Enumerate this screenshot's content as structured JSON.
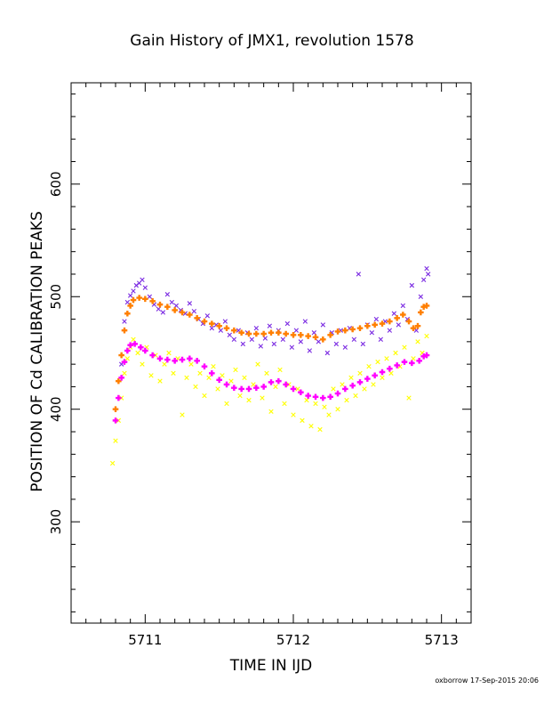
{
  "chart_data": {
    "type": "scatter",
    "title": "Gain History of JMX1, revolution 1578",
    "xlabel": "TIME IN IJD",
    "ylabel": "POSITION OF Cd CALIBRATION PEAKS",
    "xlim": [
      5710.5,
      5713.2
    ],
    "ylim": [
      210,
      690
    ],
    "xticks": [
      5711,
      5712,
      5713
    ],
    "yticks": [
      300,
      400,
      500,
      600
    ],
    "grid": false,
    "series": [
      {
        "color": "#7b2be2",
        "marker": "x",
        "points": [
          [
            5710.84,
            440
          ],
          [
            5710.86,
            478
          ],
          [
            5710.88,
            495
          ],
          [
            5710.9,
            501
          ],
          [
            5710.92,
            505
          ],
          [
            5710.94,
            510
          ],
          [
            5710.96,
            512
          ],
          [
            5710.98,
            515
          ],
          [
            5711.0,
            508
          ],
          [
            5711.03,
            500
          ],
          [
            5711.06,
            493
          ],
          [
            5711.09,
            489
          ],
          [
            5711.12,
            486
          ],
          [
            5711.15,
            502
          ],
          [
            5711.18,
            495
          ],
          [
            5711.21,
            492
          ],
          [
            5711.24,
            488
          ],
          [
            5711.27,
            485
          ],
          [
            5711.3,
            494
          ],
          [
            5711.33,
            487
          ],
          [
            5711.36,
            480
          ],
          [
            5711.39,
            476
          ],
          [
            5711.42,
            483
          ],
          [
            5711.45,
            472
          ],
          [
            5711.48,
            475
          ],
          [
            5711.51,
            470
          ],
          [
            5711.54,
            478
          ],
          [
            5711.57,
            466
          ],
          [
            5711.6,
            462
          ],
          [
            5711.63,
            470
          ],
          [
            5711.66,
            458
          ],
          [
            5711.69,
            468
          ],
          [
            5711.72,
            462
          ],
          [
            5711.75,
            472
          ],
          [
            5711.78,
            456
          ],
          [
            5711.81,
            463
          ],
          [
            5711.84,
            474
          ],
          [
            5711.87,
            458
          ],
          [
            5711.9,
            470
          ],
          [
            5711.93,
            462
          ],
          [
            5711.96,
            476
          ],
          [
            5711.99,
            455
          ],
          [
            5712.02,
            470
          ],
          [
            5712.05,
            460
          ],
          [
            5712.08,
            478
          ],
          [
            5712.11,
            452
          ],
          [
            5712.14,
            468
          ],
          [
            5712.17,
            460
          ],
          [
            5712.2,
            475
          ],
          [
            5712.23,
            450
          ],
          [
            5712.26,
            468
          ],
          [
            5712.29,
            458
          ],
          [
            5712.32,
            470
          ],
          [
            5712.35,
            455
          ],
          [
            5712.38,
            472
          ],
          [
            5712.41,
            462
          ],
          [
            5712.44,
            520
          ],
          [
            5712.47,
            458
          ],
          [
            5712.5,
            475
          ],
          [
            5712.53,
            468
          ],
          [
            5712.56,
            480
          ],
          [
            5712.59,
            462
          ],
          [
            5712.62,
            478
          ],
          [
            5712.65,
            470
          ],
          [
            5712.68,
            485
          ],
          [
            5712.71,
            475
          ],
          [
            5712.74,
            492
          ],
          [
            5712.77,
            480
          ],
          [
            5712.8,
            510
          ],
          [
            5712.83,
            470
          ],
          [
            5712.86,
            500
          ],
          [
            5712.88,
            515
          ],
          [
            5712.9,
            525
          ],
          [
            5712.91,
            520
          ]
        ]
      },
      {
        "color": "#ffff00",
        "marker": "x",
        "points": [
          [
            5710.78,
            352
          ],
          [
            5710.8,
            372
          ],
          [
            5710.82,
            390
          ],
          [
            5710.84,
            410
          ],
          [
            5710.86,
            432
          ],
          [
            5710.88,
            445
          ],
          [
            5710.9,
            455
          ],
          [
            5710.92,
            462
          ],
          [
            5710.95,
            450
          ],
          [
            5710.98,
            440
          ],
          [
            5711.01,
            455
          ],
          [
            5711.04,
            430
          ],
          [
            5711.07,
            448
          ],
          [
            5711.1,
            425
          ],
          [
            5711.13,
            440
          ],
          [
            5711.16,
            450
          ],
          [
            5711.19,
            432
          ],
          [
            5711.22,
            445
          ],
          [
            5711.25,
            395
          ],
          [
            5711.28,
            428
          ],
          [
            5711.31,
            440
          ],
          [
            5711.34,
            420
          ],
          [
            5711.37,
            432
          ],
          [
            5711.4,
            412
          ],
          [
            5711.43,
            428
          ],
          [
            5711.46,
            438
          ],
          [
            5711.49,
            418
          ],
          [
            5711.52,
            430
          ],
          [
            5711.55,
            405
          ],
          [
            5711.58,
            425
          ],
          [
            5711.61,
            435
          ],
          [
            5711.64,
            412
          ],
          [
            5711.67,
            428
          ],
          [
            5711.7,
            408
          ],
          [
            5711.73,
            422
          ],
          [
            5711.76,
            440
          ],
          [
            5711.79,
            410
          ],
          [
            5711.82,
            432
          ],
          [
            5711.85,
            398
          ],
          [
            5711.88,
            420
          ],
          [
            5711.91,
            435
          ],
          [
            5711.94,
            405
          ],
          [
            5711.97,
            422
          ],
          [
            5712.0,
            395
          ],
          [
            5712.03,
            418
          ],
          [
            5712.06,
            390
          ],
          [
            5712.09,
            408
          ],
          [
            5712.12,
            385
          ],
          [
            5712.15,
            405
          ],
          [
            5712.18,
            382
          ],
          [
            5712.21,
            402
          ],
          [
            5712.24,
            395
          ],
          [
            5712.27,
            418
          ],
          [
            5712.3,
            400
          ],
          [
            5712.33,
            422
          ],
          [
            5712.36,
            408
          ],
          [
            5712.39,
            428
          ],
          [
            5712.42,
            412
          ],
          [
            5712.45,
            432
          ],
          [
            5712.48,
            418
          ],
          [
            5712.51,
            438
          ],
          [
            5712.54,
            422
          ],
          [
            5712.57,
            442
          ],
          [
            5712.6,
            428
          ],
          [
            5712.63,
            445
          ],
          [
            5712.66,
            432
          ],
          [
            5712.69,
            450
          ],
          [
            5712.72,
            438
          ],
          [
            5712.75,
            455
          ],
          [
            5712.78,
            410
          ],
          [
            5712.81,
            445
          ],
          [
            5712.84,
            460
          ],
          [
            5712.87,
            450
          ],
          [
            5712.9,
            465
          ]
        ]
      },
      {
        "color": "#ff7f00",
        "marker": "+",
        "points": [
          [
            5710.8,
            400
          ],
          [
            5710.82,
            425
          ],
          [
            5710.84,
            448
          ],
          [
            5710.86,
            470
          ],
          [
            5710.88,
            485
          ],
          [
            5710.9,
            492
          ],
          [
            5710.92,
            497
          ],
          [
            5710.96,
            499
          ],
          [
            5711.0,
            498
          ],
          [
            5711.05,
            496
          ],
          [
            5711.1,
            493
          ],
          [
            5711.15,
            491
          ],
          [
            5711.2,
            488
          ],
          [
            5711.25,
            486
          ],
          [
            5711.3,
            484
          ],
          [
            5711.35,
            481
          ],
          [
            5711.4,
            478
          ],
          [
            5711.45,
            476
          ],
          [
            5711.5,
            474
          ],
          [
            5711.55,
            472
          ],
          [
            5711.6,
            470
          ],
          [
            5711.65,
            468
          ],
          [
            5711.7,
            467
          ],
          [
            5711.75,
            467
          ],
          [
            5711.8,
            467
          ],
          [
            5711.85,
            468
          ],
          [
            5711.9,
            468
          ],
          [
            5711.95,
            467
          ],
          [
            5712.0,
            466
          ],
          [
            5712.05,
            466
          ],
          [
            5712.1,
            465
          ],
          [
            5712.15,
            464
          ],
          [
            5712.2,
            462
          ],
          [
            5712.25,
            466
          ],
          [
            5712.3,
            469
          ],
          [
            5712.35,
            470
          ],
          [
            5712.4,
            471
          ],
          [
            5712.45,
            472
          ],
          [
            5712.5,
            474
          ],
          [
            5712.55,
            475
          ],
          [
            5712.6,
            476
          ],
          [
            5712.65,
            478
          ],
          [
            5712.7,
            481
          ],
          [
            5712.74,
            484
          ],
          [
            5712.78,
            478
          ],
          [
            5712.81,
            472
          ],
          [
            5712.84,
            474
          ],
          [
            5712.86,
            486
          ],
          [
            5712.88,
            491
          ],
          [
            5712.9,
            492
          ]
        ]
      },
      {
        "color": "#ff00ff",
        "marker": "+",
        "points": [
          [
            5710.8,
            390
          ],
          [
            5710.82,
            410
          ],
          [
            5710.84,
            428
          ],
          [
            5710.86,
            442
          ],
          [
            5710.88,
            452
          ],
          [
            5710.9,
            457
          ],
          [
            5710.93,
            458
          ],
          [
            5710.97,
            455
          ],
          [
            5711.0,
            452
          ],
          [
            5711.05,
            448
          ],
          [
            5711.1,
            445
          ],
          [
            5711.15,
            444
          ],
          [
            5711.2,
            443
          ],
          [
            5711.25,
            444
          ],
          [
            5711.3,
            445
          ],
          [
            5711.35,
            443
          ],
          [
            5711.4,
            438
          ],
          [
            5711.45,
            432
          ],
          [
            5711.5,
            426
          ],
          [
            5711.55,
            422
          ],
          [
            5711.6,
            419
          ],
          [
            5711.65,
            418
          ],
          [
            5711.7,
            418
          ],
          [
            5711.75,
            419
          ],
          [
            5711.8,
            420
          ],
          [
            5711.85,
            424
          ],
          [
            5711.9,
            425
          ],
          [
            5711.95,
            422
          ],
          [
            5712.0,
            418
          ],
          [
            5712.05,
            415
          ],
          [
            5712.1,
            412
          ],
          [
            5712.15,
            411
          ],
          [
            5712.2,
            410
          ],
          [
            5712.25,
            411
          ],
          [
            5712.3,
            414
          ],
          [
            5712.35,
            418
          ],
          [
            5712.4,
            421
          ],
          [
            5712.45,
            424
          ],
          [
            5712.5,
            427
          ],
          [
            5712.55,
            430
          ],
          [
            5712.6,
            433
          ],
          [
            5712.65,
            436
          ],
          [
            5712.7,
            439
          ],
          [
            5712.75,
            442
          ],
          [
            5712.8,
            441
          ],
          [
            5712.85,
            443
          ],
          [
            5712.88,
            447
          ],
          [
            5712.9,
            448
          ]
        ]
      }
    ]
  },
  "footer": "oxborrow 17-Sep-2015 20:06"
}
